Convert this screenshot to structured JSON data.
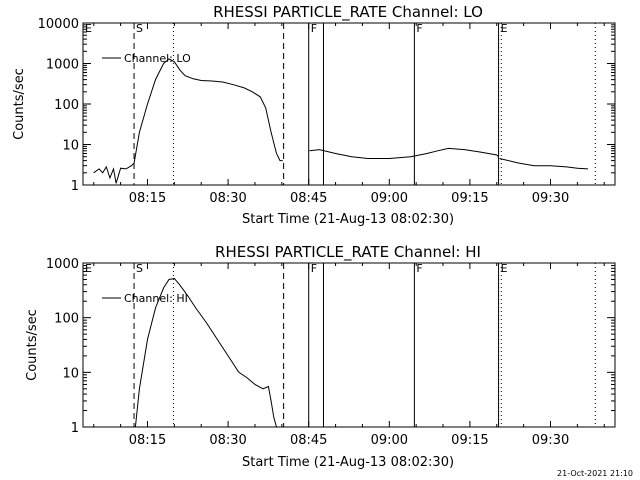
{
  "chart_data": [
    {
      "type": "line",
      "title": "RHESSI PARTICLE_RATE Channel: LO",
      "xlabel": "Start Time (21-Aug-13 08:02:30)",
      "ylabel": "Counts/sec",
      "yscale": "log",
      "ylim": [
        1,
        10000
      ],
      "xlim": [
        "08:03:00",
        "09:42:00"
      ],
      "x_ticks": [
        "08:15",
        "08:30",
        "08:45",
        "09:00",
        "09:15",
        "09:30"
      ],
      "y_ticks": [
        "1",
        "10",
        "100",
        "1000",
        "10000"
      ],
      "legend": {
        "position": "top-left",
        "entries": [
          "Channel: LO"
        ]
      },
      "markers": [
        {
          "time": "08:03:00",
          "label": "E",
          "style": "solid"
        },
        {
          "time": "08:12:30",
          "label": "S",
          "style": "dashed"
        },
        {
          "time": "08:19:50",
          "label": "",
          "style": "dotted"
        },
        {
          "time": "08:40:20",
          "label": "",
          "style": "dashed"
        },
        {
          "time": "08:45:00",
          "label": "F",
          "style": "solid"
        },
        {
          "time": "08:47:45",
          "label": "",
          "style": "solid"
        },
        {
          "time": "09:04:40",
          "label": "F",
          "style": "solid"
        },
        {
          "time": "09:20:20",
          "label": "E",
          "style": "solid"
        },
        {
          "time": "09:20:50",
          "label": "",
          "style": "dotted"
        },
        {
          "time": "09:38:20",
          "label": "",
          "style": "dotted"
        }
      ],
      "segments": [
        {
          "x": [
            "08:05:00",
            "08:06:00",
            "08:06:40",
            "08:07:20",
            "08:08:00",
            "08:08:40",
            "08:09:10",
            "08:10:00",
            "08:11:00",
            "08:12:00",
            "08:12:30",
            "08:13:30",
            "08:15:00",
            "08:16:30",
            "08:18:00",
            "08:19:00",
            "08:20:00",
            "08:21:00",
            "08:22:00",
            "08:23:30",
            "08:25:00",
            "08:27:00",
            "08:29:00",
            "08:31:00",
            "08:33:00",
            "08:34:30",
            "08:36:00",
            "08:37:00",
            "08:38:00",
            "08:39:00",
            "08:39:40",
            "08:40:10"
          ],
          "y": [
            2,
            2.5,
            2,
            2.8,
            1.5,
            2.5,
            1.1,
            2.6,
            2.5,
            3,
            3.5,
            20,
            100,
            400,
            1000,
            1300,
            1100,
            700,
            500,
            420,
            380,
            370,
            350,
            300,
            250,
            200,
            150,
            80,
            20,
            6,
            4,
            4
          ]
        },
        {
          "x": [
            "08:45:10",
            "08:47:00",
            "08:50:00",
            "08:53:00",
            "08:56:00",
            "09:00:00",
            "09:04:00",
            "09:07:00",
            "09:09:00",
            "09:11:00",
            "09:14:00",
            "09:17:00",
            "09:20:00",
            "09:20:20"
          ],
          "y": [
            7,
            7.5,
            6,
            5,
            4.5,
            4.5,
            5,
            6,
            7,
            8,
            7.5,
            6.5,
            5.5,
            5
          ]
        },
        {
          "x": [
            "09:20:30",
            "09:24:00",
            "09:27:00",
            "09:30:00",
            "09:33:00",
            "09:35:00",
            "09:37:00"
          ],
          "y": [
            4.5,
            3.5,
            3,
            3,
            2.8,
            2.6,
            2.5
          ]
        }
      ]
    },
    {
      "type": "line",
      "title": "RHESSI PARTICLE_RATE Channel: HI",
      "xlabel": "Start Time (21-Aug-13 08:02:30)",
      "ylabel": "Counts/sec",
      "yscale": "log",
      "ylim": [
        1,
        1000
      ],
      "xlim": [
        "08:03:00",
        "09:42:00"
      ],
      "x_ticks": [
        "08:15",
        "08:30",
        "08:45",
        "09:00",
        "09:15",
        "09:30"
      ],
      "y_ticks": [
        "1",
        "10",
        "100",
        "1000"
      ],
      "legend": {
        "position": "top-left",
        "entries": [
          "Channel: HI"
        ]
      },
      "markers": [
        {
          "time": "08:03:00",
          "label": "E",
          "style": "solid"
        },
        {
          "time": "08:12:30",
          "label": "S",
          "style": "dashed"
        },
        {
          "time": "08:19:50",
          "label": "",
          "style": "dotted"
        },
        {
          "time": "08:40:20",
          "label": "",
          "style": "dashed"
        },
        {
          "time": "08:45:00",
          "label": "F",
          "style": "solid"
        },
        {
          "time": "08:47:45",
          "label": "",
          "style": "solid"
        },
        {
          "time": "09:04:40",
          "label": "F",
          "style": "solid"
        },
        {
          "time": "09:20:20",
          "label": "E",
          "style": "solid"
        },
        {
          "time": "09:20:50",
          "label": "",
          "style": "dotted"
        },
        {
          "time": "09:38:20",
          "label": "",
          "style": "dotted"
        }
      ],
      "segments": [
        {
          "x": [
            "08:12:45",
            "08:13:30",
            "08:15:00",
            "08:16:30",
            "08:18:00",
            "08:19:00",
            "08:20:00",
            "08:21:00",
            "08:22:30",
            "08:24:00",
            "08:26:00",
            "08:28:00",
            "08:30:00",
            "08:32:00",
            "08:33:30",
            "08:35:00",
            "08:36:30",
            "08:37:30",
            "08:38:00",
            "08:38:30",
            "08:39:00"
          ],
          "y": [
            1,
            5,
            40,
            150,
            350,
            500,
            520,
            400,
            250,
            150,
            80,
            40,
            20,
            10,
            8,
            6,
            5,
            5.5,
            3,
            1.5,
            1
          ]
        }
      ]
    }
  ],
  "footer": {
    "timestamp": "21-Oct-2021 21:10"
  }
}
